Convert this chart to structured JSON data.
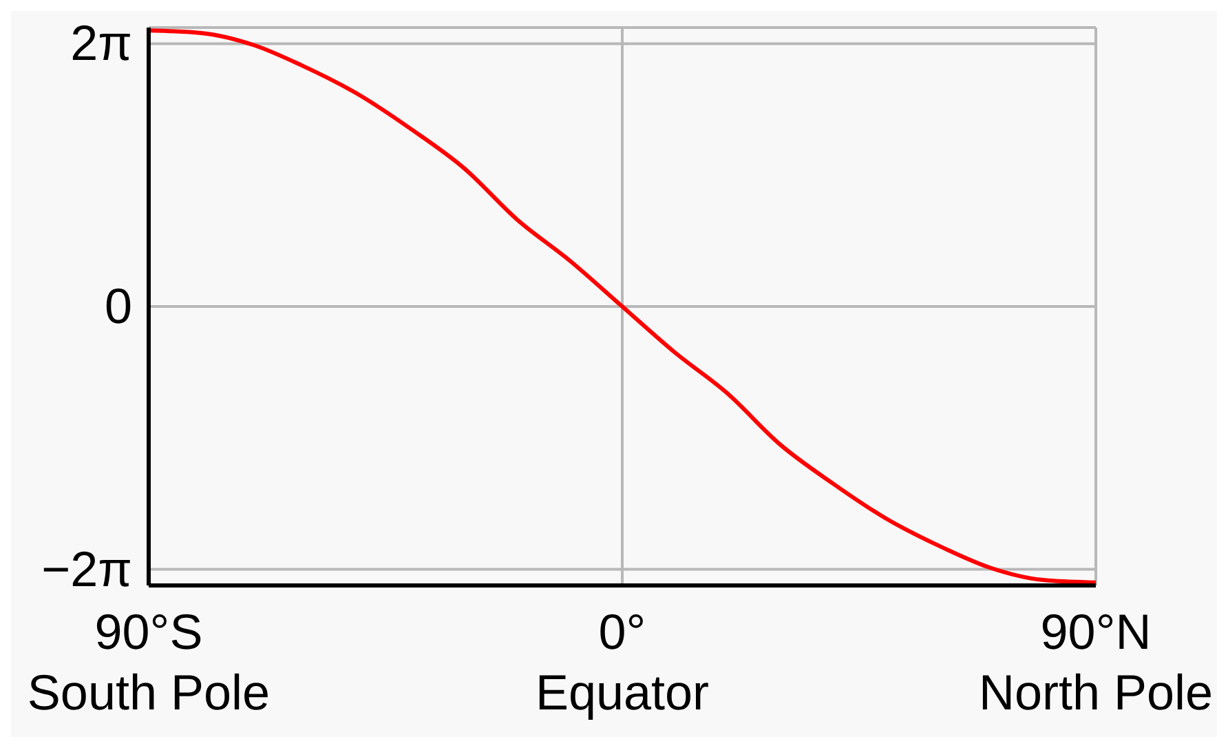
{
  "chart_data": {
    "type": "line",
    "x": [
      -90,
      -80,
      -70,
      -61,
      -50,
      -40,
      -30,
      -20,
      -10,
      0,
      10,
      20,
      30,
      40,
      50,
      61,
      70,
      80,
      90
    ],
    "series": [
      {
        "color": "#ff0000",
        "values": [
          6.6,
          6.54,
          6.25,
          5.77,
          5.06,
          4.23,
          3.3,
          2.08,
          1.1,
          0,
          -1.1,
          -2.08,
          -3.3,
          -4.23,
          -5.06,
          -5.77,
          -6.25,
          -6.54,
          -6.6
        ]
      }
    ],
    "xlim": [
      -90,
      90
    ],
    "xticks": [
      {
        "value": -90,
        "label": "90°S\nSouth Pole"
      },
      {
        "value": 0,
        "label": "0°\nEquator"
      },
      {
        "value": 90,
        "label": "90°N\nNorth Pole"
      }
    ],
    "ylim": [
      -6.67,
      6.67
    ],
    "yticks": [
      {
        "value": -6.283,
        "label": "−2π"
      },
      {
        "value": 0,
        "label": "0"
      },
      {
        "value": 6.283,
        "label": "2π"
      }
    ],
    "grid": true,
    "marker": "none",
    "line_style": "solid"
  }
}
